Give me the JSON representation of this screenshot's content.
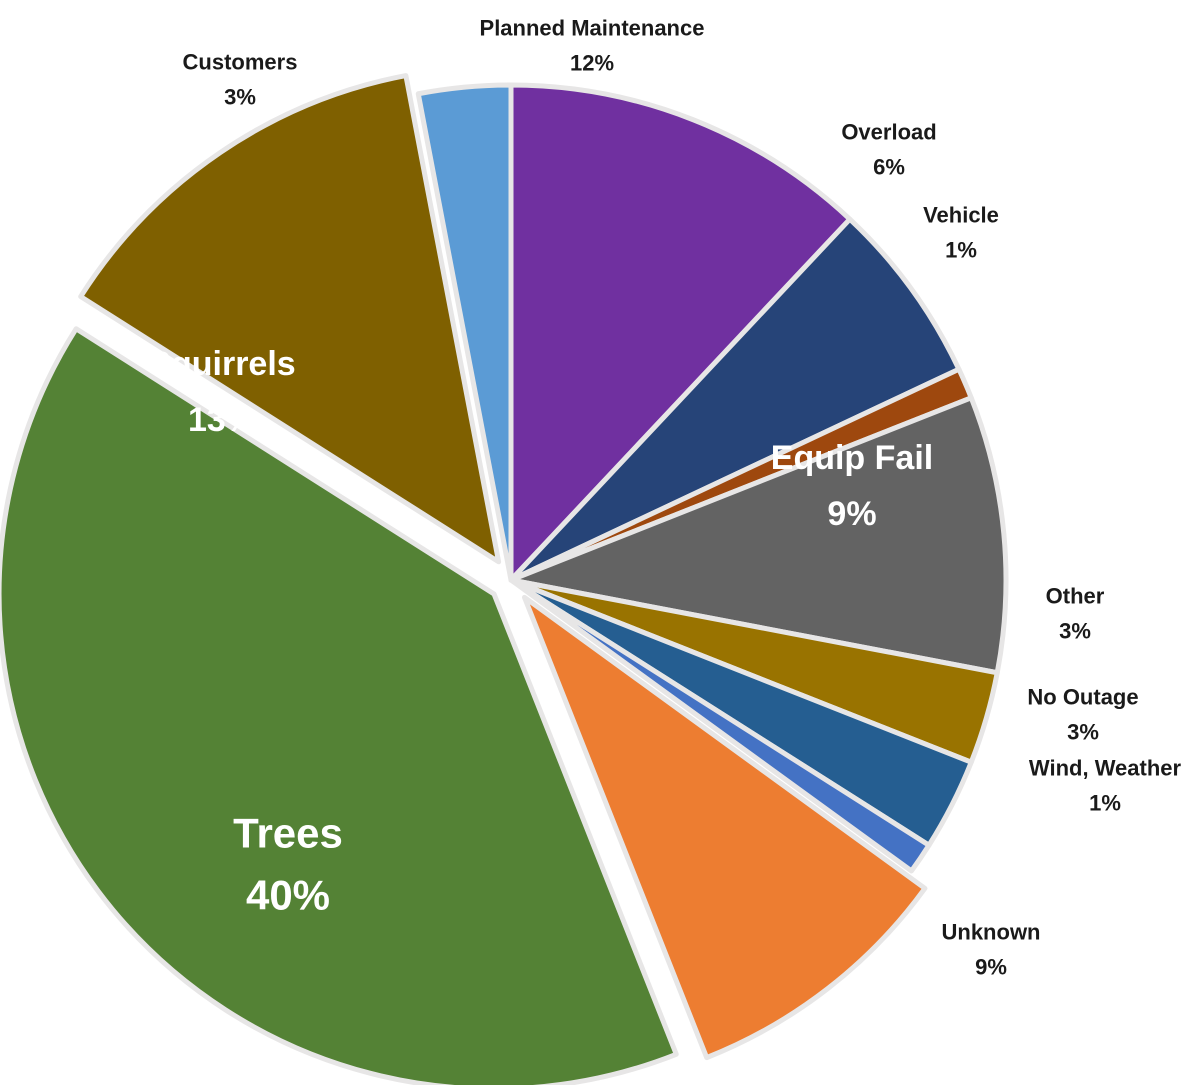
{
  "chart_data": {
    "type": "pie",
    "start_angle_deg": 90,
    "direction": "clockwise",
    "slices": [
      {
        "name": "Planned Maintenance",
        "value": 12,
        "label": "12%",
        "color": "#7030A0"
      },
      {
        "name": "Overload",
        "value": 6,
        "label": "6%",
        "color": "#264478"
      },
      {
        "name": "Vehicle",
        "value": 1,
        "label": "1%",
        "color": "#9E480E"
      },
      {
        "name": "Equip Fail",
        "value": 9,
        "label": "9%",
        "color": "#636363"
      },
      {
        "name": "Other",
        "value": 3,
        "label": "3%",
        "color": "#997300"
      },
      {
        "name": "No Outage",
        "value": 3,
        "label": "3%",
        "color": "#255E91"
      },
      {
        "name": "Wind, Weather",
        "value": 1,
        "label": "1%",
        "color": "#4472C4"
      },
      {
        "name": "Unknown",
        "value": 9,
        "label": "9%",
        "color": "#ED7D31"
      },
      {
        "name": "Trees",
        "value": 40,
        "label": "40%",
        "color": "#548235"
      },
      {
        "name": "Squirrels",
        "value": 13,
        "label": "13%",
        "color": "#7F6000"
      },
      {
        "name": "Customers",
        "value": 3,
        "label": "3%",
        "color": "#5B9BD5"
      }
    ],
    "exploded": [
      "Unknown",
      "Trees",
      "Squirrels"
    ],
    "separator_color": "#E7E6E6"
  }
}
